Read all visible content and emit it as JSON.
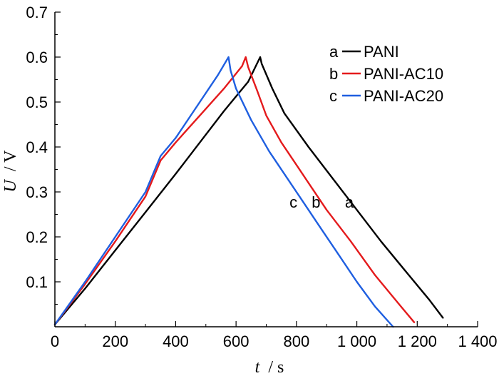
{
  "chart_data": {
    "type": "line",
    "xlabel_var": "t",
    "xlabel_unit": "/ s",
    "ylabel_var": "U",
    "ylabel_unit": "/ V",
    "xlim": [
      0,
      1400
    ],
    "ylim": [
      0,
      0.7
    ],
    "x_ticks": [
      0,
      200,
      400,
      600,
      800,
      1000,
      1200,
      1400
    ],
    "x_tick_labels": [
      "0",
      "200",
      "400",
      "600",
      "800",
      "1 000",
      "1 200",
      "1 400"
    ],
    "y_ticks": [
      0.1,
      0.2,
      0.3,
      0.4,
      0.5,
      0.6,
      0.7
    ],
    "y_tick_labels": [
      "0.1",
      "0.2",
      "0.3",
      "0.4",
      "0.5",
      "0.6",
      "0.7"
    ],
    "grid": false,
    "legend_position": "top-right",
    "series": [
      {
        "name": "PANI",
        "key": "a",
        "color": "#000000",
        "x": [
          0,
          100,
          200,
          300,
          400,
          480,
          560,
          640,
          680,
          685,
          720,
          760,
          840,
          920,
          1000,
          1080,
          1160,
          1240,
          1285
        ],
        "y": [
          0.005,
          0.085,
          0.17,
          0.255,
          0.34,
          0.41,
          0.48,
          0.545,
          0.6,
          0.585,
          0.53,
          0.475,
          0.4,
          0.33,
          0.26,
          0.19,
          0.125,
          0.06,
          0.02
        ]
      },
      {
        "name": "PANI-AC10",
        "key": "b",
        "color": "#e41a1c",
        "x": [
          0,
          100,
          200,
          300,
          350,
          400,
          480,
          560,
          620,
          632,
          640,
          670,
          700,
          750,
          800,
          850,
          900,
          980,
          1060,
          1140,
          1190
        ],
        "y": [
          0.005,
          0.095,
          0.19,
          0.29,
          0.37,
          0.41,
          0.47,
          0.53,
          0.58,
          0.6,
          0.578,
          0.525,
          0.47,
          0.41,
          0.36,
          0.31,
          0.26,
          0.19,
          0.115,
          0.05,
          0.01
        ]
      },
      {
        "name": "PANI-AC20",
        "key": "c",
        "color": "#1f5fe0",
        "x": [
          0,
          100,
          200,
          300,
          350,
          400,
          480,
          540,
          575,
          582,
          600,
          650,
          710,
          760,
          820,
          880,
          940,
          1000,
          1060,
          1120
        ],
        "y": [
          0.005,
          0.1,
          0.2,
          0.3,
          0.38,
          0.42,
          0.5,
          0.56,
          0.6,
          0.57,
          0.53,
          0.46,
          0.39,
          0.34,
          0.28,
          0.22,
          0.16,
          0.1,
          0.045,
          0.0
        ]
      }
    ],
    "curve_labels": [
      {
        "text": "c",
        "x": 790,
        "y": 0.278
      },
      {
        "text": "b",
        "x": 865,
        "y": 0.278
      },
      {
        "text": "a",
        "x": 975,
        "y": 0.278
      }
    ]
  }
}
